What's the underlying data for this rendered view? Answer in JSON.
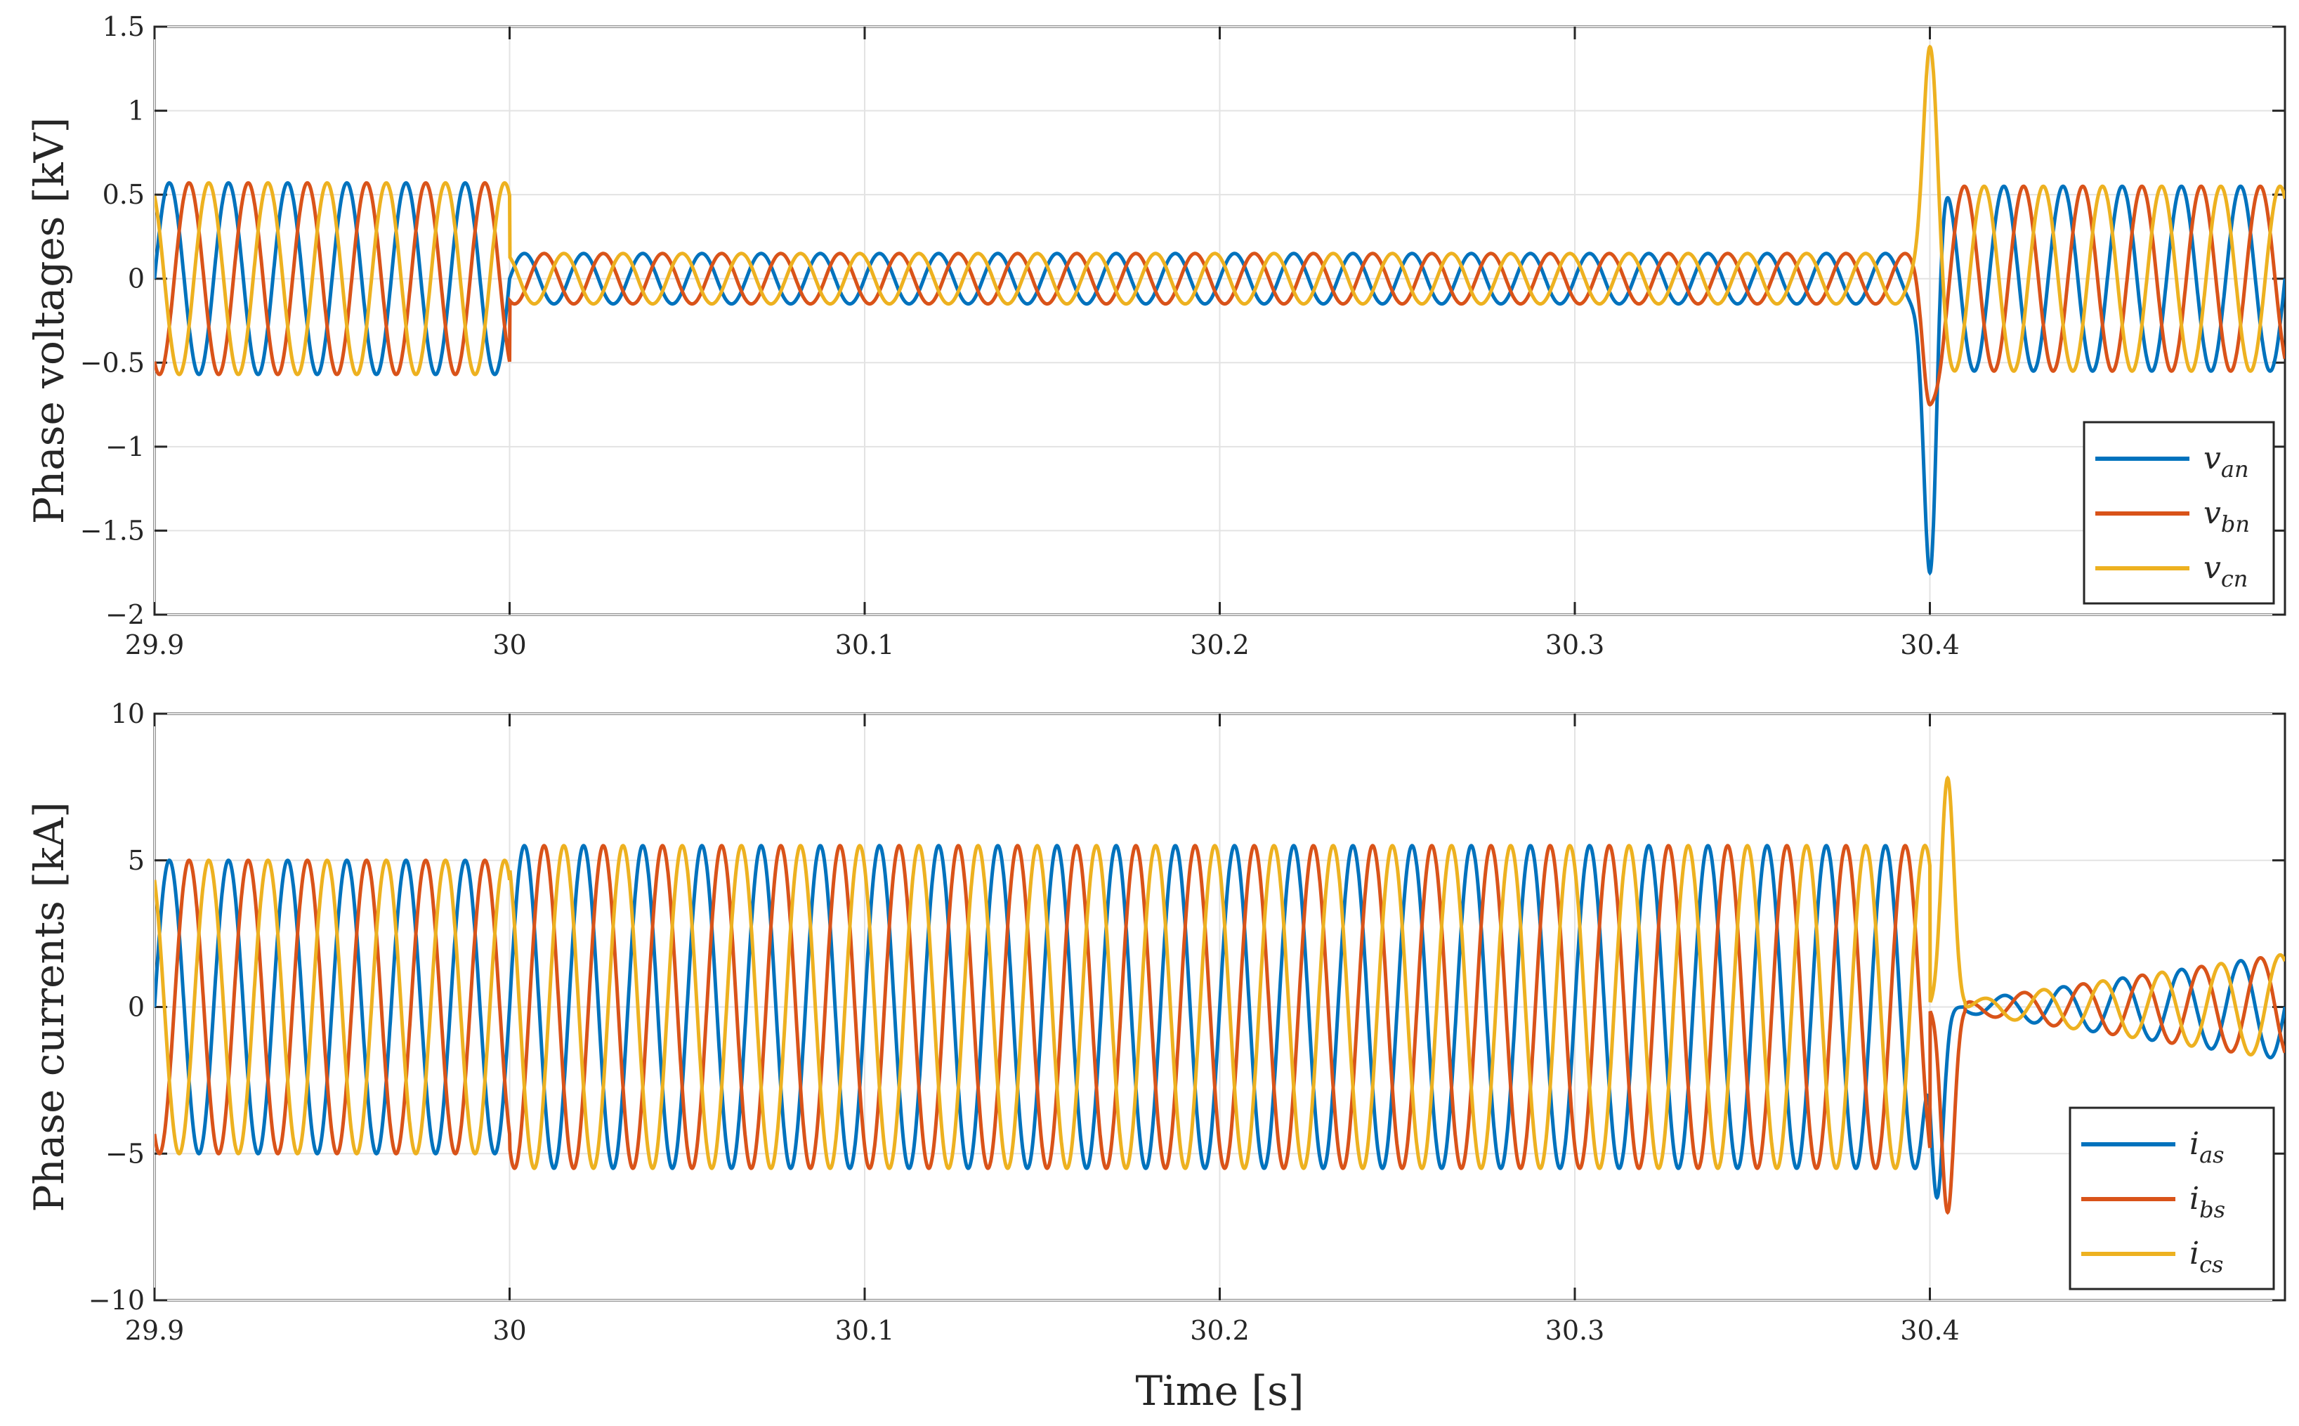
{
  "figure": {
    "xlabel": "Time [s]"
  },
  "colors": {
    "blue": "#0072BD",
    "orange": "#D95319",
    "yellow": "#EDB120",
    "grid": "#e3e3e3",
    "axis": "#262626"
  },
  "chart_data": [
    {
      "type": "line",
      "title": "",
      "ylabel": "Phase voltages [kV]",
      "xlim": [
        29.9,
        30.5
      ],
      "ylim": [
        -2,
        1.5
      ],
      "xticks": [
        29.9,
        30,
        30.1,
        30.2,
        30.3,
        30.4
      ],
      "xtick_labels": [
        "29.9",
        "30",
        "30.1",
        "30.2",
        "30.3",
        "30.4"
      ],
      "yticks": [
        -2,
        -1.5,
        -1,
        -0.5,
        0,
        0.5,
        1,
        1.5
      ],
      "ytick_labels": [
        "−2",
        "−1.5",
        "−1",
        "−0.5",
        "0",
        "0.5",
        "1",
        "1.5"
      ],
      "grid": true,
      "legend_position": "bottom-right",
      "frequency_hz": 60,
      "series": [
        {
          "name": "v",
          "sub": "an",
          "color": "#0072BD",
          "phase_deg": 0
        },
        {
          "name": "v",
          "sub": "bn",
          "color": "#D95319",
          "phase_deg": -120
        },
        {
          "name": "v",
          "sub": "cn",
          "color": "#EDB120",
          "phase_deg": 120
        }
      ],
      "segments": [
        {
          "t_start": 29.9,
          "t_end": 30.0,
          "amplitude": 0.57
        },
        {
          "t_start": 30.0,
          "t_end": 30.4,
          "amplitude": 0.15,
          "note_min_amplitude": 0.1
        },
        {
          "t_start": 30.4,
          "t_end": 30.5,
          "amplitude": 0.55
        }
      ],
      "transients": [
        {
          "series": "an",
          "t": 30.4,
          "y": -1.75
        },
        {
          "series": "cn",
          "t": 30.4,
          "y": 1.38
        },
        {
          "series": "bn",
          "t": 30.4,
          "y": -0.75
        }
      ]
    },
    {
      "type": "line",
      "title": "",
      "ylabel": "Phase currents [kA]",
      "xlabel": "Time [s]",
      "xlim": [
        29.9,
        30.5
      ],
      "ylim": [
        -10,
        10
      ],
      "xticks": [
        29.9,
        30,
        30.1,
        30.2,
        30.3,
        30.4
      ],
      "xtick_labels": [
        "29.9",
        "30",
        "30.1",
        "30.2",
        "30.3",
        "30.4"
      ],
      "yticks": [
        -10,
        -5,
        0,
        5,
        10
      ],
      "ytick_labels": [
        "−10",
        "−5",
        "0",
        "5",
        "10"
      ],
      "grid": true,
      "legend_position": "bottom-right",
      "frequency_hz": 60,
      "series": [
        {
          "name": "i",
          "sub": "as",
          "color": "#0072BD",
          "phase_deg": 0
        },
        {
          "name": "i",
          "sub": "bs",
          "color": "#D95319",
          "phase_deg": -120
        },
        {
          "name": "i",
          "sub": "cs",
          "color": "#EDB120",
          "phase_deg": 120
        }
      ],
      "segments": [
        {
          "t_start": 29.9,
          "t_end": 30.0,
          "amplitude": 5.0
        },
        {
          "t_start": 30.0,
          "t_end": 30.4,
          "amplitude": 5.5
        },
        {
          "t_start": 30.41,
          "t_end": 30.5,
          "amplitude_start": 0.2,
          "amplitude_end": 1.8
        }
      ],
      "transients": [
        {
          "series": "cs",
          "t": 30.405,
          "y": 7.8
        },
        {
          "series": "bs",
          "t": 30.405,
          "y": -7.0
        },
        {
          "series": "as",
          "t": 30.402,
          "y": -6.5
        }
      ]
    }
  ]
}
